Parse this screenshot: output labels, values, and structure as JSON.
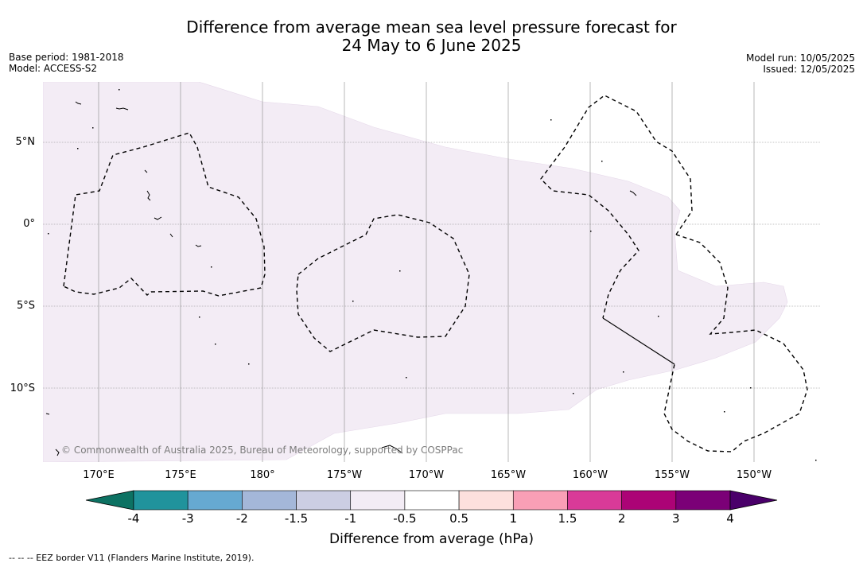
{
  "header": {
    "title_line1": "Difference from average mean sea level pressure forecast for",
    "title_line2": "24 May to 6 June 2025",
    "base_period": "Base period: 1981-2018",
    "model": "Model: ACCESS-S2",
    "model_run": "Model run: 10/05/2025",
    "issued": "Issued: 12/05/2025"
  },
  "map": {
    "projection": "plate-carree",
    "lon_range": [
      173,
      190.5
    ],
    "lat_range": [
      -14.5,
      8.5
    ],
    "grid": true,
    "lat_labels": [
      "5°N",
      "0°",
      "5°S",
      "10°S"
    ],
    "lon_labels": [
      "170°E",
      "175°E",
      "180°",
      "175°W",
      "170°W",
      "165°W",
      "160°W",
      "155°W",
      "150°W"
    ],
    "anomaly_fill_color": "#f3ecf5",
    "anomaly_fill_class": "-0.5 to -1 hPa",
    "copyright": "© Commonwealth of Australia 2025, Bureau of Meteorology, supported by COSPPac"
  },
  "colorbar": {
    "ticks": [
      "-4",
      "-3",
      "-2",
      "-1.5",
      "-1",
      "-0.5",
      "0.5",
      "1",
      "1.5",
      "2",
      "3",
      "4"
    ],
    "colors": [
      "#0d7263",
      "#20939c",
      "#66a9d1",
      "#a4b7d9",
      "#cccee3",
      "#f3ecf5",
      "#ffffff",
      "#fde0dd",
      "#f99fb6",
      "#d93a98",
      "#ac0376",
      "#7b0077",
      "#4a006a"
    ],
    "label": "Difference from average (hPa)"
  },
  "footer": {
    "legend_text": "--  --  -- EEZ border V11 (Flanders Marine Institute, 2019)."
  }
}
